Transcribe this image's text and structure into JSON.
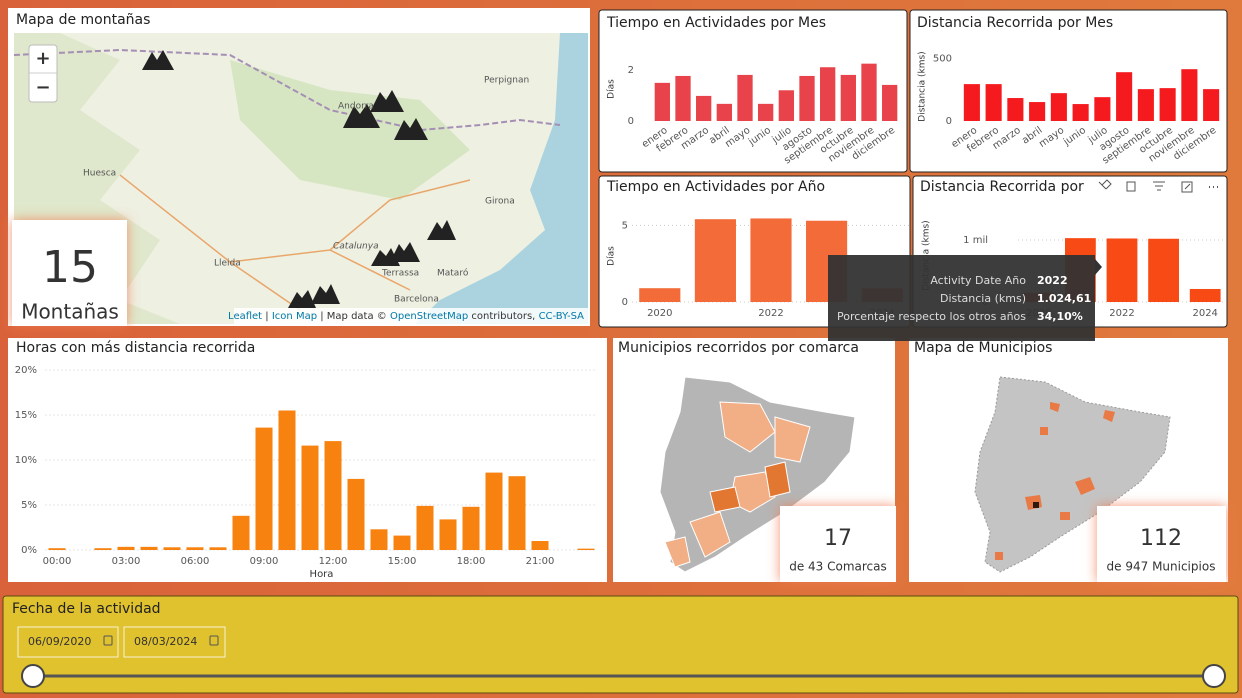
{
  "chart_data": [
    {
      "type": "bar",
      "title": "Tiempo en Actividades por Mes",
      "ylabel": "Días",
      "categories": [
        "enero",
        "febrero",
        "marzo",
        "abril",
        "mayo",
        "junio",
        "julio",
        "agosto",
        "septiembre",
        "octubre",
        "noviembre",
        "diciembre"
      ],
      "values": [
        1.49,
        1.76,
        0.98,
        0.67,
        1.8,
        0.67,
        1.2,
        1.76,
        2.1,
        1.8,
        2.24,
        1.41
      ],
      "color": "#e8434a",
      "ylim": [
        0,
        2.5
      ],
      "yticks": [
        0,
        2
      ],
      "grid": false
    },
    {
      "type": "bar",
      "title": "Distancia Recorrida por Mes",
      "ylabel": "Distancia (kms)",
      "categories": [
        "enero",
        "febrero",
        "marzo",
        "abril",
        "mayo",
        "junio",
        "julio",
        "agosto",
        "septiembre",
        "octubre",
        "noviembre",
        "diciembre"
      ],
      "values": [
        294,
        294,
        183,
        151,
        222,
        135,
        190,
        389,
        254,
        262,
        413,
        254
      ],
      "color": "#f51a1e",
      "ylim": [
        0,
        550
      ],
      "yticks": [
        0,
        500
      ],
      "grid": false
    },
    {
      "type": "bar",
      "title": "Tiempo en Actividades por Año",
      "ylabel": "Días",
      "categories": [
        "2020",
        null,
        "2022",
        null,
        "2024"
      ],
      "values": [
        0.9,
        5.4,
        5.45,
        5.3,
        0.9
      ],
      "color": "#f26b38",
      "ylim": [
        0,
        6
      ],
      "yticks": [
        0,
        5
      ],
      "grid": true
    },
    {
      "type": "bar",
      "title": "Distancia Recorrida por",
      "ylabel": "Distancia (kms)",
      "categories": [
        "2020",
        null,
        "2022",
        null,
        "2024"
      ],
      "values": [
        150,
        1030,
        1024.61,
        1020,
        210
      ],
      "color": "#f84a14",
      "ylim": [
        0,
        1500
      ],
      "yticks": [
        0,
        {
          "value": 1000,
          "label": "1 mil"
        }
      ],
      "grid": true
    },
    {
      "type": "bar",
      "title": "Horas con más distancia recorrida",
      "xlabel": "Hora",
      "categories": [
        "00:00",
        null,
        null,
        "03:00",
        null,
        null,
        "06:00",
        null,
        null,
        "09:00",
        null,
        null,
        "12:00",
        null,
        null,
        "15:00",
        null,
        null,
        "18:00",
        null,
        null,
        "21:00",
        null,
        null
      ],
      "values": [
        0.2,
        null,
        0.2,
        0.35,
        0.35,
        0.3,
        0.3,
        0.3,
        3.8,
        13.6,
        15.5,
        11.6,
        12.1,
        7.9,
        2.3,
        1.6,
        4.9,
        3.4,
        4.8,
        8.6,
        8.2,
        1.0,
        null,
        0.15
      ],
      "color": "#f7820f",
      "ylim": [
        0,
        20
      ],
      "yticks": [
        {
          "value": 0,
          "label": "0%"
        },
        {
          "value": 5,
          "label": "5%"
        },
        {
          "value": 10,
          "label": "10%"
        },
        {
          "value": 15,
          "label": "15%"
        },
        {
          "value": 20,
          "label": "20%"
        }
      ],
      "grid": true
    }
  ],
  "tooltip": {
    "rows": [
      {
        "label": "Activity Date Año",
        "value": "2022"
      },
      {
        "label": "Distancia (kms)",
        "value": "1.024,61"
      },
      {
        "label": "Porcentaje respecto los otros años",
        "value": "34,10%"
      }
    ]
  },
  "mountain_map": {
    "title": "Mapa de montañas",
    "zoom_in": "+",
    "zoom_out": "−",
    "places": [
      "Andorra",
      "Huesca",
      "Girona",
      "Lleida",
      "Catalunya",
      "Terrassa",
      "Mataró",
      "Barcelona",
      "Perpignan"
    ],
    "attribution": {
      "leaflet": "Leaflet",
      "sep": "|",
      "icon_map": "Icon Map",
      "prefix": "Map data ©",
      "osm": "OpenStreetMap",
      "contributors": "contributors,",
      "license": "CC-BY-SA"
    },
    "count": 15,
    "count_label": "Montañas"
  },
  "comarca_map": {
    "title": "Municipios recorridos por comarca",
    "count": 17,
    "count_label": "de 43 Comarcas"
  },
  "municipio_map": {
    "title": "Mapa de Municipios",
    "count": 112,
    "count_label": "de 947 Municipios"
  },
  "date_slicer": {
    "title": "Fecha de la actividad",
    "start": "06/09/2020",
    "end": "08/03/2024"
  }
}
